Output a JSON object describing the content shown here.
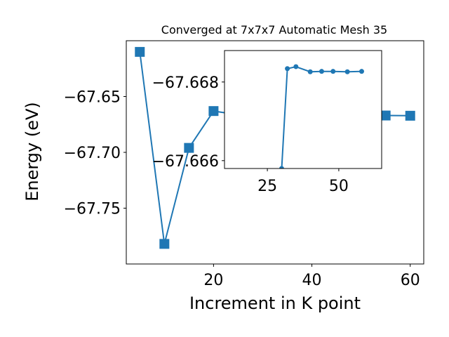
{
  "chart_data": [
    {
      "type": "line",
      "title": "Converged at 7x7x7 Automatic Mesh 35",
      "xlabel": "Increment in K point",
      "ylabel": "Energy (eV)",
      "xlim": [
        2.25,
        62.75
      ],
      "ylim": [
        -67.8,
        -67.6
      ],
      "x_ticks": [
        20,
        40,
        60
      ],
      "x_tick_labels": [
        "20",
        "40",
        "60"
      ],
      "y_ticks": [
        -67.65,
        -67.7,
        -67.75
      ],
      "y_tick_labels": [
        "−67.65",
        "−67.70",
        "−67.75"
      ],
      "color": "#1f77b4",
      "marker": "square",
      "grid": false,
      "series": [
        {
          "x": [
            5,
            10,
            15,
            20,
            25,
            30,
            35,
            40,
            45,
            50,
            55,
            60
          ],
          "values": [
            -67.61,
            -67.782,
            -67.696,
            -67.663,
            -67.6663,
            -67.6663,
            -67.6665,
            -67.6666,
            -67.6667,
            -67.6667,
            -67.667,
            -67.6672
          ]
        }
      ]
    },
    {
      "type": "line",
      "inset": true,
      "xlim": [
        10,
        65
      ],
      "ylim": [
        -67.6658,
        -67.6688
      ],
      "x_ticks": [
        25,
        50
      ],
      "x_tick_labels": [
        "25",
        "50"
      ],
      "y_ticks": [
        -67.668,
        -67.666
      ],
      "y_tick_labels": [
        "−67.668",
        "−67.666"
      ],
      "color": "#1f77b4",
      "marker": "circle",
      "grid": false,
      "series": [
        {
          "x": [
            30,
            32,
            35,
            40,
            44,
            48,
            53,
            58
          ],
          "values": [
            -67.6658,
            -67.66834,
            -67.66839,
            -67.66826,
            -67.66827,
            -67.66827,
            -67.66826,
            -67.66827
          ]
        }
      ]
    }
  ]
}
